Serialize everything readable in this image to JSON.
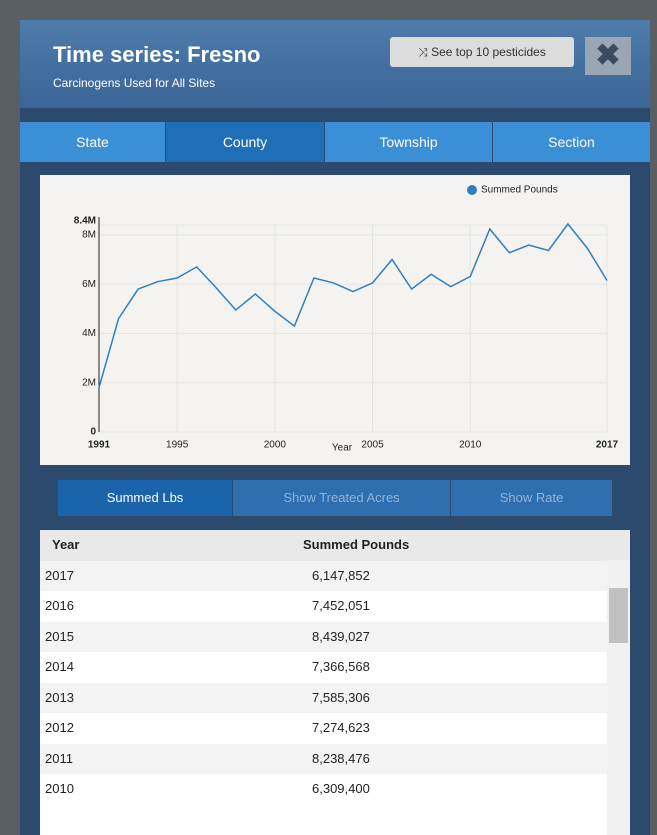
{
  "header": {
    "title": "Time series:  Fresno",
    "subtitle": "Carcinogens Used for All Sites",
    "button": "See top 10 pesticides"
  },
  "tabs": [
    "State",
    "County",
    "Township",
    "Section"
  ],
  "chart_data": {
    "type": "line",
    "xlabel": "Year",
    "x": [
      1991,
      1992,
      1993,
      1994,
      1995,
      1996,
      1997,
      1998,
      1999,
      2000,
      2001,
      2002,
      2003,
      2004,
      2005,
      2006,
      2007,
      2008,
      2009,
      2010,
      2011,
      2012,
      2013,
      2014,
      2015,
      2016,
      2017
    ],
    "series": [
      {
        "name": "Summed Pounds",
        "color": "#2f7fc1",
        "values": [
          1800000,
          4600000,
          5800000,
          6100000,
          6250000,
          6700000,
          5850000,
          4950000,
          5600000,
          4900000,
          4300000,
          6250000,
          6050000,
          5700000,
          6050000,
          7000000,
          5800000,
          6400000,
          5900000,
          6309400,
          8238476,
          7274623,
          7585306,
          7366568,
          8439027,
          7452051,
          6147852
        ]
      }
    ],
    "xlim": [
      1991,
      2017
    ],
    "xticks": [
      1991,
      1995,
      2000,
      2005,
      2010,
      2017
    ],
    "ylim": [
      0,
      8400000
    ],
    "yticks": [
      0,
      {
        "value": 2000000,
        "label": "2M"
      },
      {
        "value": 4000000,
        "label": "4M"
      },
      {
        "value": 6000000,
        "label": "6M"
      },
      {
        "value": 8000000,
        "label": "8M"
      },
      {
        "value": 8400000,
        "label": "8.4M"
      }
    ],
    "grid": true,
    "legend": "top-right"
  },
  "subtabs": [
    "Summed Lbs",
    "Show Treated Acres",
    "Show Rate"
  ],
  "table": {
    "columns": [
      "Year",
      "Summed Pounds"
    ],
    "rows": [
      [
        "2017",
        "6,147,852"
      ],
      [
        "2016",
        "7,452,051"
      ],
      [
        "2015",
        "8,439,027"
      ],
      [
        "2014",
        "7,366,568"
      ],
      [
        "2013",
        "7,585,306"
      ],
      [
        "2012",
        "7,274,623"
      ],
      [
        "2011",
        "8,238,476"
      ],
      [
        "2010",
        "6,309,400"
      ]
    ]
  }
}
